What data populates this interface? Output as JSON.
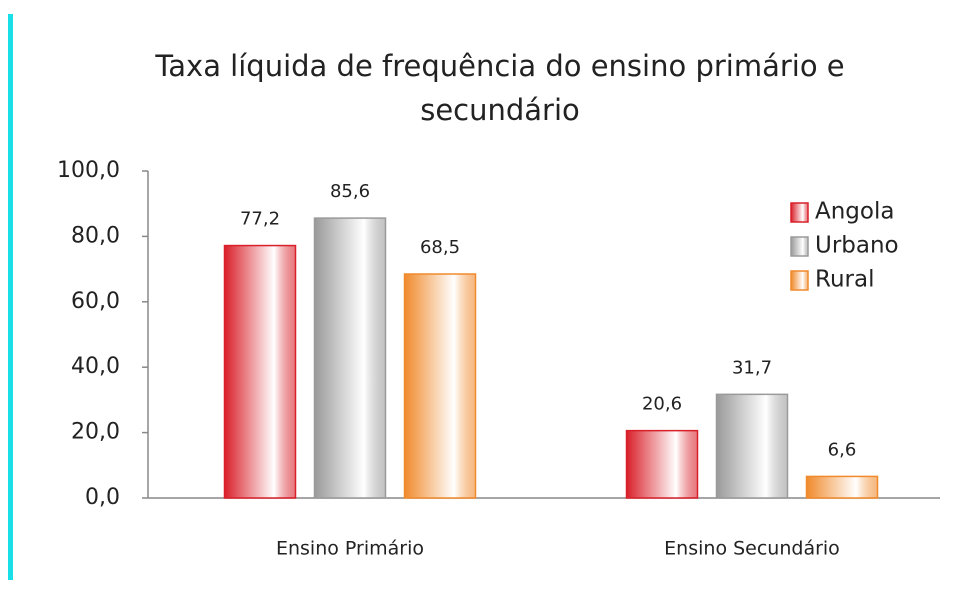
{
  "chart_data": {
    "type": "bar",
    "title": "Taxa líquida de frequência do ensino primário e secundário",
    "categories": [
      "Ensino Primário",
      "Ensino Secundário"
    ],
    "series": [
      {
        "name": "Angola",
        "color": "#d9202a",
        "values": [
          77.2,
          20.6
        ],
        "value_labels": [
          "77,2",
          "20,6"
        ]
      },
      {
        "name": "Urbano",
        "color": "#9a9a9a",
        "values": [
          85.6,
          31.7
        ],
        "value_labels": [
          "85,6",
          "31,7"
        ]
      },
      {
        "name": "Rural",
        "color": "#f08a2c",
        "values": [
          68.5,
          6.6
        ],
        "value_labels": [
          "68,5",
          "6,6"
        ]
      }
    ],
    "ylim": [
      0,
      100
    ],
    "yticks": [
      {
        "value": 0,
        "label": "0,0"
      },
      {
        "value": 20,
        "label": "20,0"
      },
      {
        "value": 40,
        "label": "40,0"
      },
      {
        "value": 60,
        "label": "60,0"
      },
      {
        "value": 80,
        "label": "80,0"
      },
      {
        "value": 100,
        "label": "100,0"
      }
    ],
    "legend": "top-right"
  }
}
